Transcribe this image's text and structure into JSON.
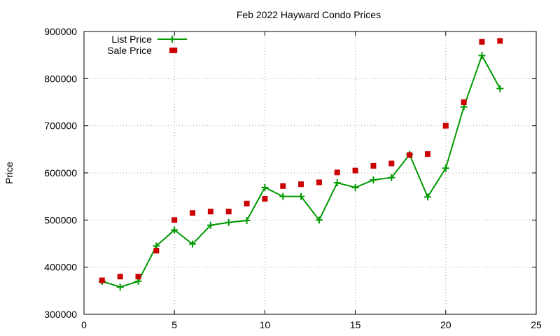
{
  "chart_data": {
    "type": "line",
    "title": "Feb 2022 Hayward Condo Prices",
    "xlabel": "",
    "ylabel": "Price",
    "xlim": [
      0,
      25
    ],
    "ylim": [
      300000,
      900000
    ],
    "xticks": [
      "0",
      "5",
      "10",
      "15",
      "20",
      "25"
    ],
    "yticks": [
      "300000",
      "400000",
      "500000",
      "600000",
      "700000",
      "800000",
      "900000"
    ],
    "grid": true,
    "legend_position": "top-left",
    "series": [
      {
        "name": "List Price",
        "style": "line+cross",
        "color": "#009900",
        "x": [
          1,
          2,
          3,
          4,
          5,
          6,
          7,
          8,
          9,
          10,
          11,
          12,
          13,
          14,
          15,
          16,
          17,
          18,
          19,
          20,
          21,
          22,
          23
        ],
        "y": [
          370000,
          358000,
          370000,
          445000,
          479000,
          449000,
          489000,
          495000,
          499000,
          569000,
          550000,
          550000,
          500000,
          579000,
          569000,
          585000,
          590000,
          639000,
          549000,
          610000,
          740000,
          849000,
          779000
        ]
      },
      {
        "name": "Sale Price",
        "style": "square",
        "color": "#cc0000",
        "x": [
          1,
          2,
          3,
          4,
          5,
          6,
          7,
          8,
          9,
          10,
          11,
          12,
          13,
          14,
          15,
          16,
          17,
          18,
          19,
          20,
          21,
          22,
          23
        ],
        "y": [
          372000,
          380000,
          380000,
          435000,
          500000,
          515000,
          518000,
          518000,
          535000,
          545000,
          572000,
          576000,
          580000,
          601000,
          605000,
          615000,
          620000,
          638000,
          640000,
          700000,
          750000,
          878000,
          880000
        ]
      },
      {
        "name": "",
        "style": "square",
        "color": "#cc0000",
        "x": [
          5
        ],
        "y": [
          860000
        ]
      }
    ]
  }
}
